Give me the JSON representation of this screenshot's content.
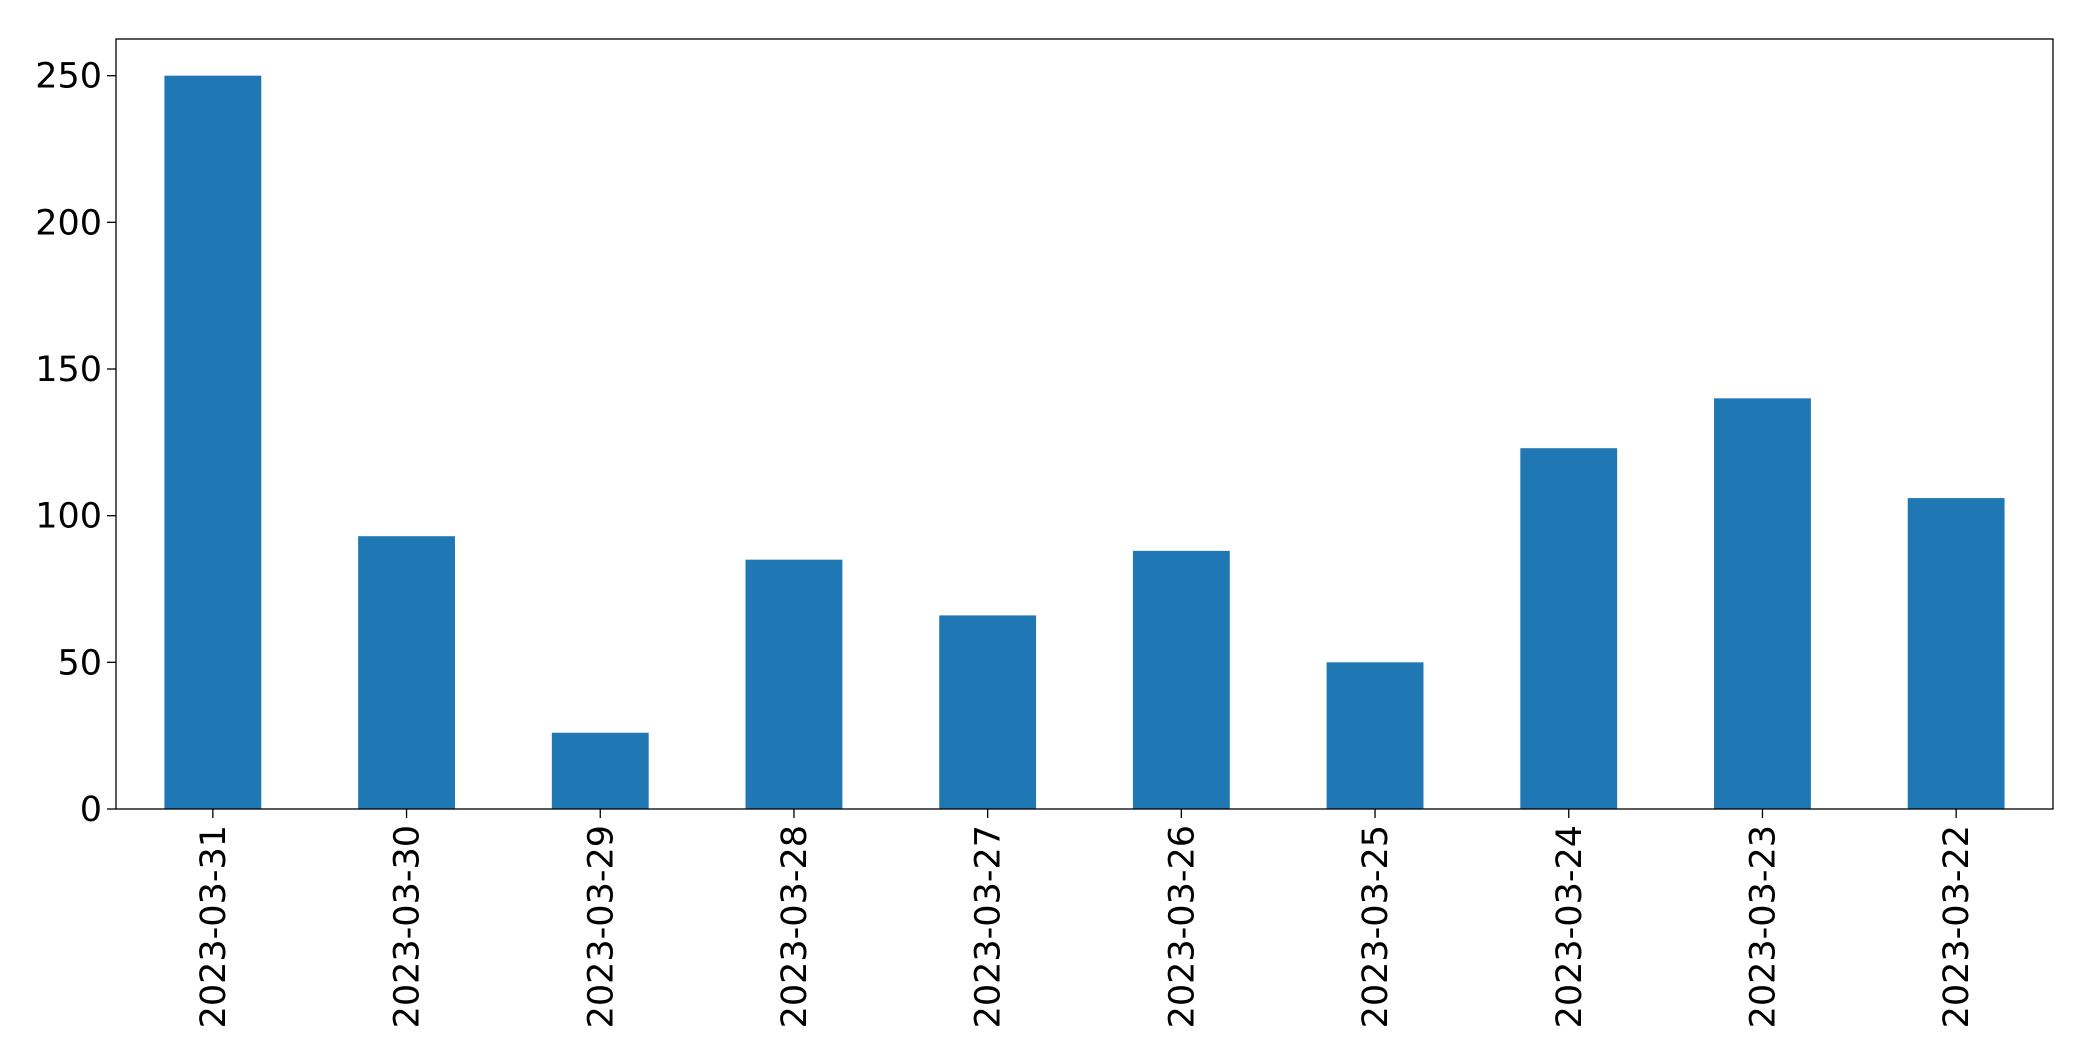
{
  "chart_data": {
    "type": "bar",
    "categories": [
      "2023-03-31",
      "2023-03-30",
      "2023-03-29",
      "2023-03-28",
      "2023-03-27",
      "2023-03-26",
      "2023-03-25",
      "2023-03-24",
      "2023-03-23",
      "2023-03-22"
    ],
    "values": [
      250,
      93,
      26,
      85,
      66,
      88,
      50,
      123,
      140,
      106
    ],
    "color": "#1f77b4",
    "ylim": [
      0,
      262.5
    ],
    "yticks": [
      0,
      50,
      100,
      150,
      200,
      250
    ],
    "grid": false
  }
}
